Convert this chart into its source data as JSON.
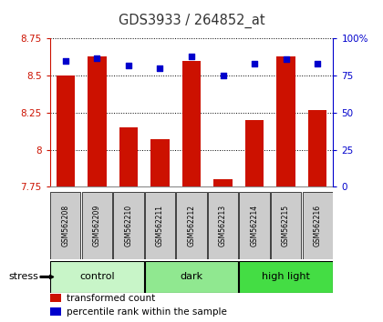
{
  "title": "GDS3933 / 264852_at",
  "samples": [
    "GSM562208",
    "GSM562209",
    "GSM562210",
    "GSM562211",
    "GSM562212",
    "GSM562213",
    "GSM562214",
    "GSM562215",
    "GSM562216"
  ],
  "transformed_count": [
    8.5,
    8.63,
    8.15,
    8.07,
    8.6,
    7.8,
    8.2,
    8.63,
    8.27
  ],
  "percentile_rank": [
    85,
    87,
    82,
    80,
    88,
    75,
    83,
    86,
    83
  ],
  "ylim_left": [
    7.75,
    8.75
  ],
  "ylim_right": [
    0,
    100
  ],
  "yticks_left": [
    7.75,
    8.0,
    8.25,
    8.5,
    8.75
  ],
  "ytick_labels_left": [
    "7.75",
    "8",
    "8.25",
    "8.5",
    "8.75"
  ],
  "yticks_right": [
    0,
    25,
    50,
    75,
    100
  ],
  "ytick_labels_right": [
    "0",
    "25",
    "50",
    "75",
    "100%"
  ],
  "groups": [
    {
      "label": "control",
      "indices": [
        0,
        1,
        2
      ],
      "color": "#c8f5c8"
    },
    {
      "label": "dark",
      "indices": [
        3,
        4,
        5
      ],
      "color": "#90e890"
    },
    {
      "label": "high light",
      "indices": [
        6,
        7,
        8
      ],
      "color": "#44dd44"
    }
  ],
  "bar_color": "#cc1100",
  "dot_color": "#0000cc",
  "left_axis_color": "#cc1100",
  "right_axis_color": "#0000cc",
  "tick_box_color": "#cccccc",
  "bg_color": "#ffffff",
  "legend_items": [
    {
      "label": "transformed count",
      "color": "#cc1100"
    },
    {
      "label": "percentile rank within the sample",
      "color": "#0000cc"
    }
  ],
  "stress_label": "stress"
}
